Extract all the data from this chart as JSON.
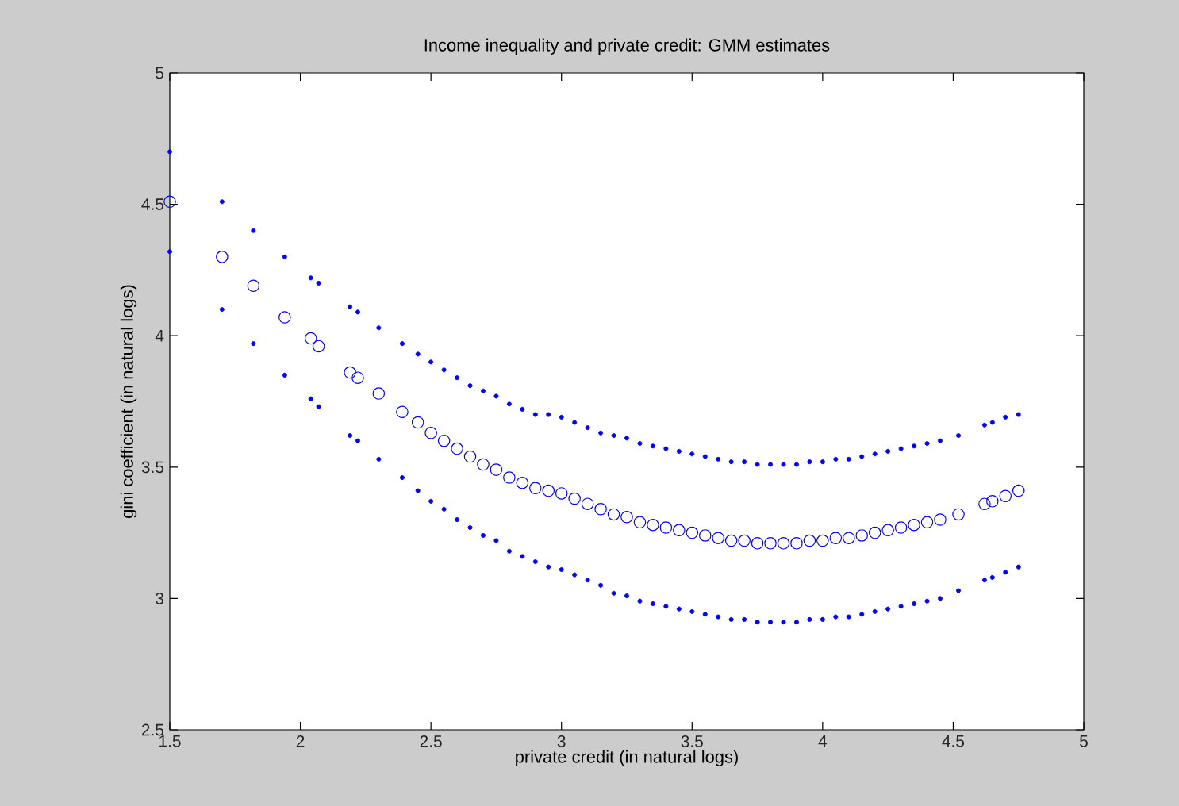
{
  "chart_data": {
    "type": "scatter",
    "title": "Income inequality and private credit: GMM estimates",
    "xlabel": "private credit (in natural logs)",
    "ylabel": "gini coefficient (in natural logs)",
    "x": [
      1.5,
      1.7,
      1.82,
      1.94,
      2.04,
      2.07,
      2.19,
      2.22,
      2.3,
      2.39,
      2.45,
      2.5,
      2.55,
      2.6,
      2.65,
      2.7,
      2.75,
      2.8,
      2.85,
      2.9,
      2.95,
      3.0,
      3.05,
      3.1,
      3.15,
      3.2,
      3.25,
      3.3,
      3.35,
      3.4,
      3.45,
      3.5,
      3.55,
      3.6,
      3.65,
      3.7,
      3.75,
      3.8,
      3.85,
      3.9,
      3.95,
      4.0,
      4.05,
      4.1,
      4.15,
      4.2,
      4.25,
      4.3,
      4.35,
      4.4,
      4.45,
      4.52,
      4.62,
      4.65,
      4.7,
      4.75
    ],
    "series": [
      {
        "color": "#0000ff",
        "marker": "dot",
        "values": [
          4.7,
          4.51,
          4.4,
          4.3,
          4.22,
          4.2,
          4.11,
          4.09,
          4.03,
          3.97,
          3.93,
          3.9,
          3.87,
          3.84,
          3.81,
          3.79,
          3.77,
          3.74,
          3.72,
          3.7,
          3.7,
          3.69,
          3.67,
          3.65,
          3.63,
          3.62,
          3.61,
          3.59,
          3.58,
          3.57,
          3.56,
          3.55,
          3.54,
          3.53,
          3.52,
          3.52,
          3.51,
          3.51,
          3.51,
          3.51,
          3.52,
          3.52,
          3.53,
          3.53,
          3.54,
          3.55,
          3.56,
          3.57,
          3.58,
          3.59,
          3.6,
          3.62,
          3.66,
          3.67,
          3.69,
          3.7
        ]
      },
      {
        "color": "#0000ff",
        "marker": "circle",
        "values": [
          4.51,
          4.3,
          4.19,
          4.07,
          3.99,
          3.96,
          3.86,
          3.84,
          3.78,
          3.71,
          3.67,
          3.63,
          3.6,
          3.57,
          3.54,
          3.51,
          3.49,
          3.46,
          3.44,
          3.42,
          3.41,
          3.4,
          3.38,
          3.36,
          3.34,
          3.32,
          3.31,
          3.29,
          3.28,
          3.27,
          3.26,
          3.25,
          3.24,
          3.23,
          3.22,
          3.22,
          3.21,
          3.21,
          3.21,
          3.21,
          3.22,
          3.22,
          3.23,
          3.23,
          3.24,
          3.25,
          3.26,
          3.27,
          3.28,
          3.29,
          3.3,
          3.32,
          3.36,
          3.37,
          3.39,
          3.41
        ]
      },
      {
        "color": "#0000ff",
        "marker": "dot",
        "values": [
          4.32,
          4.1,
          3.97,
          3.85,
          3.76,
          3.73,
          3.62,
          3.6,
          3.53,
          3.46,
          3.41,
          3.37,
          3.34,
          3.3,
          3.27,
          3.24,
          3.22,
          3.18,
          3.16,
          3.14,
          3.12,
          3.11,
          3.09,
          3.07,
          3.05,
          3.02,
          3.01,
          2.99,
          2.98,
          2.97,
          2.96,
          2.95,
          2.94,
          2.93,
          2.92,
          2.92,
          2.91,
          2.91,
          2.91,
          2.91,
          2.92,
          2.92,
          2.93,
          2.93,
          2.94,
          2.95,
          2.96,
          2.97,
          2.98,
          2.99,
          3.0,
          3.03,
          3.07,
          3.08,
          3.1,
          3.12
        ]
      }
    ],
    "xlim": [
      1.5,
      5
    ],
    "ylim": [
      2.5,
      5
    ],
    "xticks": [
      1.5,
      2,
      2.5,
      3,
      3.5,
      4,
      4.5,
      5
    ],
    "yticks": [
      2.5,
      3,
      3.5,
      4,
      4.5,
      5
    ],
    "grid": false,
    "legend": false
  }
}
